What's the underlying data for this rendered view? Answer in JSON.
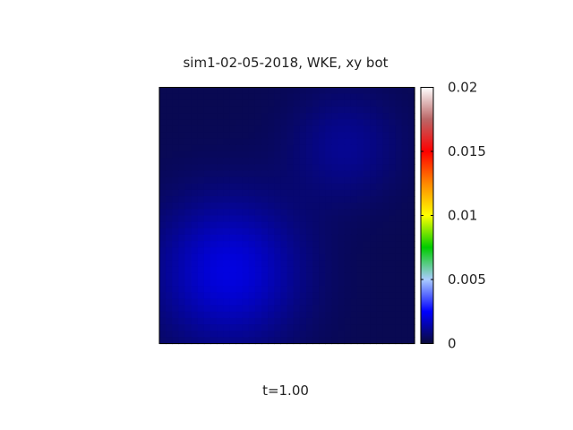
{
  "chart_data": {
    "type": "heatmap",
    "title": "sim1-02-05-2018, WKE, xy bot",
    "time_label": "t=1.00",
    "xlabel": "",
    "ylabel": "",
    "colorbar": {
      "range": [
        0,
        0.02
      ],
      "ticks": [
        0,
        0.005,
        0.01,
        0.015,
        0.02
      ],
      "tick_labels": [
        "0",
        "0.005",
        "0.01",
        "0.015",
        "0.02"
      ],
      "colormap": [
        {
          "value": 0.0,
          "color": "#0a0a3a"
        },
        {
          "value": 0.0025,
          "color": "#0000ff"
        },
        {
          "value": 0.005,
          "color": "#aaccff"
        },
        {
          "value": 0.0075,
          "color": "#00cc00"
        },
        {
          "value": 0.01,
          "color": "#ffff00"
        },
        {
          "value": 0.0125,
          "color": "#ff8800"
        },
        {
          "value": 0.015,
          "color": "#ff0000"
        },
        {
          "value": 0.0175,
          "color": "#bb6666"
        },
        {
          "value": 0.02,
          "color": "#ffffff"
        }
      ]
    },
    "field": {
      "background_value": 0.0003,
      "blobs": [
        {
          "cx": 0.27,
          "cy": 0.28,
          "peak": 0.0018,
          "sigma": 0.2
        },
        {
          "cx": 0.73,
          "cy": 0.77,
          "peak": 0.0008,
          "sigma": 0.15
        }
      ]
    }
  }
}
